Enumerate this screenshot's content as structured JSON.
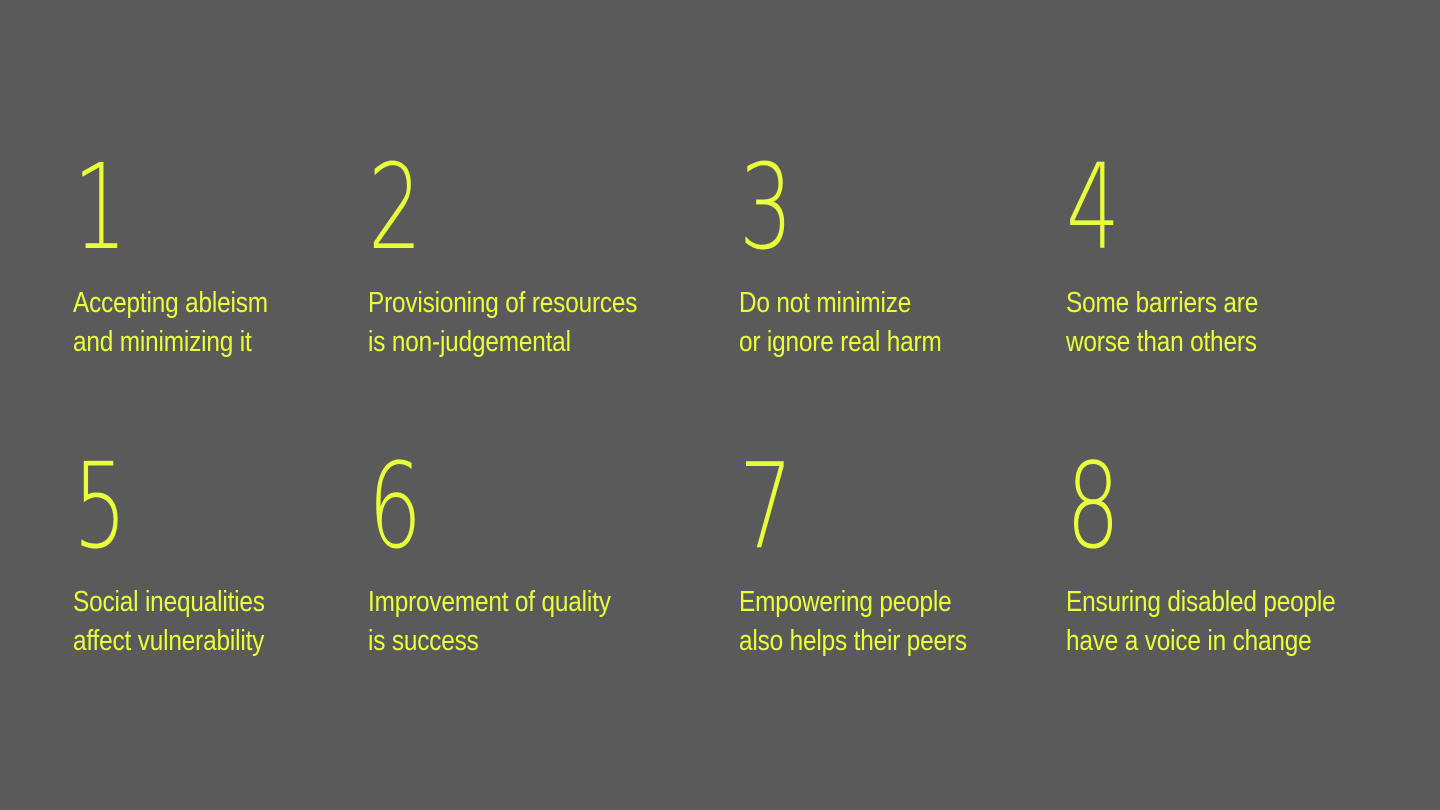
{
  "accent_color": "#e8ff3a",
  "background_color": "#5a5a5a",
  "items": [
    {
      "number": "1",
      "line1": "Accepting ableism",
      "line2": "and minimizing it"
    },
    {
      "number": "2",
      "line1": "Provisioning of resources",
      "line2": "is non-judgemental"
    },
    {
      "number": "3",
      "line1": "Do not minimize",
      "line2": "or ignore real harm"
    },
    {
      "number": "4",
      "line1": "Some barriers are",
      "line2": "worse than others"
    },
    {
      "number": "5",
      "line1": "Social inequalities",
      "line2": "affect vulnerability"
    },
    {
      "number": "6",
      "line1": "Improvement of quality",
      "line2": "is success"
    },
    {
      "number": "7",
      "line1": "Empowering  people",
      "line2": "also helps their peers"
    },
    {
      "number": "8",
      "line1": "Ensuring disabled people",
      "line2": "have a voice in change"
    }
  ]
}
